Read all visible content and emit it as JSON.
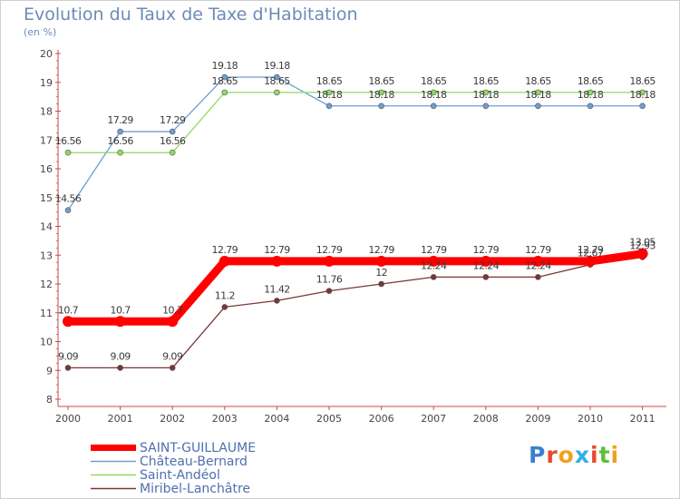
{
  "header": {
    "title": "Evolution du Taux de Taxe d'Habitation",
    "unit": "(en %)"
  },
  "chart_data": {
    "type": "line",
    "title": "Evolution du Taux de Taxe d'Habitation",
    "ylabel": "(en %)",
    "xlabel": "",
    "categories": [
      "2000",
      "2001",
      "2002",
      "2003",
      "2004",
      "2005",
      "2006",
      "2007",
      "2008",
      "2009",
      "2010",
      "2011"
    ],
    "ylim": [
      8,
      20
    ],
    "yticks": [
      "8",
      "9",
      "10",
      "11",
      "12",
      "13",
      "14",
      "15",
      "16",
      "17",
      "18",
      "19",
      "20"
    ],
    "grid": false,
    "legend_position": "bottom-left",
    "series": [
      {
        "name": "SAINT-GUILLAUME",
        "color": "#ff0000",
        "values": [
          10.7,
          10.7,
          10.7,
          12.79,
          12.79,
          12.79,
          12.79,
          12.79,
          12.79,
          12.79,
          12.79,
          13.05
        ],
        "labels": [
          "10.7",
          "10.7",
          "10.7",
          "12.79",
          "12.79",
          "12.79",
          "12.79",
          "12.79",
          "12.79",
          "12.79",
          "12.79",
          "13.05"
        ]
      },
      {
        "name": "Château-Bernard",
        "color": "#6d9fd0",
        "values": [
          14.56,
          17.29,
          17.29,
          19.18,
          19.18,
          18.18,
          18.18,
          18.18,
          18.18,
          18.18,
          18.18,
          18.18
        ],
        "labels": [
          "14.56",
          "17.29",
          "17.29",
          "19.18",
          "19.18",
          "18.18",
          "18.18",
          "18.18",
          "18.18",
          "18.18",
          "18.18",
          "18.18"
        ]
      },
      {
        "name": "Saint-Andéol",
        "color": "#93d860",
        "values": [
          16.56,
          16.56,
          16.56,
          18.65,
          18.65,
          18.65,
          18.65,
          18.65,
          18.65,
          18.65,
          18.65,
          18.65
        ],
        "labels": [
          "16.56",
          "16.56",
          "16.56",
          "18.65",
          "18.65",
          "18.65",
          "18.65",
          "18.65",
          "18.65",
          "18.65",
          "18.65",
          "18.65"
        ]
      },
      {
        "name": "Miribel-Lanchâtre",
        "color": "#7a3636",
        "values": [
          9.09,
          9.09,
          9.09,
          11.2,
          11.42,
          11.76,
          12,
          12.24,
          12.24,
          12.24,
          12.67,
          12.93
        ],
        "labels": [
          "9.09",
          "9.09",
          "9.09",
          "11.2",
          "11.42",
          "11.76",
          "12",
          "12.24",
          "12.24",
          "12.24",
          "12.67",
          "12.93"
        ]
      }
    ]
  },
  "logo": {
    "letters": [
      "P",
      "r",
      "o",
      "x",
      "i",
      "t",
      "i"
    ],
    "colors": [
      "#3b7fd4",
      "#e64a2e",
      "#f0a21e",
      "#2fb0e5",
      "#e64a2e",
      "#5bbf3a",
      "#f0a21e"
    ]
  }
}
